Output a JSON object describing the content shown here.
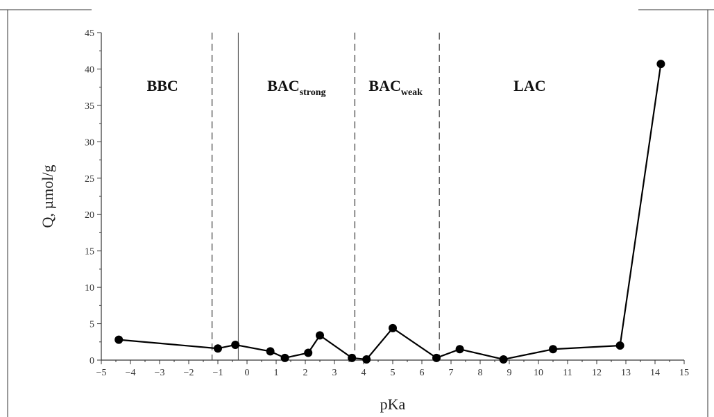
{
  "chart_data": {
    "type": "line",
    "xlabel": "pKa",
    "ylabel": "Q, µmol/g",
    "xlim": [
      -5,
      15
    ],
    "ylim": [
      0,
      45
    ],
    "xticks": [
      -5,
      -4,
      -3,
      -2,
      -1,
      0,
      1,
      2,
      3,
      4,
      5,
      6,
      7,
      8,
      9,
      10,
      11,
      12,
      13,
      14,
      15
    ],
    "yticks": [
      0,
      5,
      10,
      15,
      20,
      25,
      30,
      35,
      40,
      45
    ],
    "grid": false,
    "series": [
      {
        "x": [
          -4.4,
          -1.0,
          -0.4,
          0.8,
          1.3,
          2.1,
          2.5,
          3.6,
          4.1,
          5.0,
          6.5,
          7.3,
          8.8,
          10.5,
          12.8,
          14.2
        ],
        "y": [
          2.8,
          1.6,
          2.1,
          1.2,
          0.3,
          1.0,
          3.4,
          0.3,
          0.1,
          4.4,
          0.3,
          1.5,
          0.1,
          1.5,
          2.0,
          40.7
        ]
      }
    ],
    "boundaries": {
      "dashed": [
        -1.2,
        3.7,
        6.6
      ],
      "solid": [
        -0.3
      ]
    },
    "regions": [
      {
        "main": "BBC",
        "sub": "",
        "x": -2.9,
        "y": 37
      },
      {
        "main": "BAC",
        "sub": "strong",
        "x": 1.7,
        "y": 37
      },
      {
        "main": "BAC",
        "sub": "weak",
        "x": 5.1,
        "y": 37
      },
      {
        "main": "LAC",
        "sub": "",
        "x": 9.7,
        "y": 37
      }
    ]
  }
}
